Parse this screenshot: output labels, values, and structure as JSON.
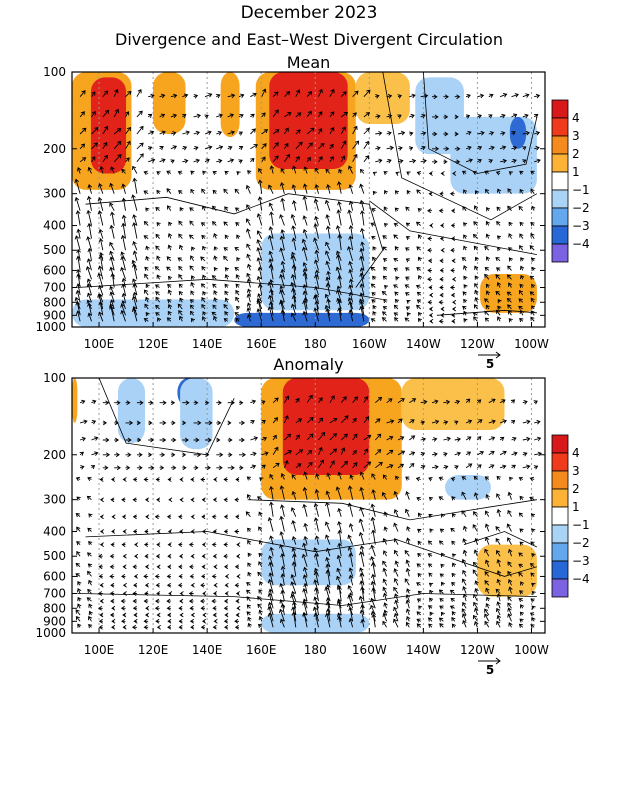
{
  "figure": {
    "title": "December 2023",
    "subtitle": "Divergence and East–West Divergent Circulation"
  },
  "chart_data": [
    {
      "type": "heatmap",
      "title": "Mean",
      "x_ticks": [
        "100E",
        "120E",
        "140E",
        "160E",
        "180",
        "160W",
        "140W",
        "120W",
        "100W"
      ],
      "x_tick_lon": [
        100,
        120,
        140,
        160,
        180,
        200,
        220,
        240,
        260
      ],
      "x_range_lon": [
        90,
        265
      ],
      "y_ticks": [
        "100",
        "200",
        "300",
        "400",
        "500",
        "600",
        "700",
        "800",
        "900",
        "1000"
      ],
      "y_tick_values": [
        100,
        200,
        300,
        400,
        500,
        600,
        700,
        800,
        900,
        1000
      ],
      "y_range": [
        100,
        1000
      ],
      "y_scale": "log-pressure",
      "vector_reference": "5",
      "grid": "dotted",
      "regions": [
        {
          "lon": [
            90,
            112
          ],
          "p": [
            100,
            290
          ],
          "value": 2
        },
        {
          "lon": [
            97,
            110
          ],
          "p": [
            105,
            250
          ],
          "value": 4
        },
        {
          "lon": [
            120,
            132
          ],
          "p": [
            100,
            175
          ],
          "value": 2
        },
        {
          "lon": [
            145,
            152
          ],
          "p": [
            100,
            180
          ],
          "value": 2
        },
        {
          "lon": [
            158,
            195
          ],
          "p": [
            100,
            290
          ],
          "value": 2
        },
        {
          "lon": [
            163,
            192
          ],
          "p": [
            100,
            240
          ],
          "value": 4
        },
        {
          "lon": [
            195,
            215
          ],
          "p": [
            100,
            160
          ],
          "value": 1.5
        },
        {
          "lon": [
            217,
            235
          ],
          "p": [
            105,
            210
          ],
          "value": -1.5
        },
        {
          "lon": [
            230,
            262
          ],
          "p": [
            150,
            300
          ],
          "value": -1.5
        },
        {
          "lon": [
            252,
            258
          ],
          "p": [
            150,
            200
          ],
          "value": -2.5
        },
        {
          "lon": [
            241,
            262
          ],
          "p": [
            620,
            880
          ],
          "value": 2
        },
        {
          "lon": [
            160,
            200
          ],
          "p": [
            430,
            860
          ],
          "value": -1.5
        },
        {
          "lon": [
            90,
            150
          ],
          "p": [
            780,
            1000
          ],
          "value": -1.5
        },
        {
          "lon": [
            150,
            200
          ],
          "p": [
            880,
            1000
          ],
          "value": -2.5
        }
      ]
    },
    {
      "type": "heatmap",
      "title": "Anomaly",
      "x_ticks": [
        "100E",
        "120E",
        "140E",
        "160E",
        "180",
        "160W",
        "140W",
        "120W",
        "100W"
      ],
      "x_tick_lon": [
        100,
        120,
        140,
        160,
        180,
        200,
        220,
        240,
        260
      ],
      "x_range_lon": [
        90,
        265
      ],
      "y_ticks": [
        "100",
        "200",
        "300",
        "400",
        "500",
        "600",
        "700",
        "800",
        "900",
        "1000"
      ],
      "y_tick_values": [
        100,
        200,
        300,
        400,
        500,
        600,
        700,
        800,
        900,
        1000
      ],
      "y_range": [
        100,
        1000
      ],
      "y_scale": "log-pressure",
      "vector_reference": "5",
      "grid": "dotted",
      "regions": [
        {
          "lon": [
            90,
            92
          ],
          "p": [
            100,
            150
          ],
          "value": 2
        },
        {
          "lon": [
            107,
            117
          ],
          "p": [
            100,
            180
          ],
          "value": -1.5
        },
        {
          "lon": [
            129,
            137
          ],
          "p": [
            100,
            130
          ],
          "value": -2.5
        },
        {
          "lon": [
            130,
            142
          ],
          "p": [
            100,
            190
          ],
          "value": -1.5
        },
        {
          "lon": [
            160,
            212
          ],
          "p": [
            100,
            300
          ],
          "value": 2
        },
        {
          "lon": [
            168,
            200
          ],
          "p": [
            100,
            240
          ],
          "value": 4
        },
        {
          "lon": [
            212,
            250
          ],
          "p": [
            100,
            160
          ],
          "value": 1.5
        },
        {
          "lon": [
            228,
            245
          ],
          "p": [
            240,
            300
          ],
          "value": -1.5
        },
        {
          "lon": [
            240,
            262
          ],
          "p": [
            450,
            720
          ],
          "value": 1.5
        },
        {
          "lon": [
            160,
            195
          ],
          "p": [
            430,
            650
          ],
          "value": -1.5
        },
        {
          "lon": [
            160,
            200
          ],
          "p": [
            840,
            1000
          ],
          "value": -1.5
        }
      ]
    }
  ],
  "colorbar": {
    "labels": [
      "4",
      "3",
      "2",
      "1",
      "−1",
      "−2",
      "−3",
      "−4"
    ],
    "colors": [
      "#d7191c",
      "#ef3b1b",
      "#f58b1f",
      "#fbb237",
      "#ffffff",
      "#aad4f5",
      "#63a8ec",
      "#2767d6",
      "#7a62e0"
    ]
  },
  "colors": {
    "red": "#e2231a",
    "orange_dark": "#f3751e",
    "orange": "#f7a51f",
    "orange_light": "#fbc04a",
    "blue_light": "#a9d2f6",
    "blue": "#5ea6ee",
    "blue_dark": "#2d6ad4"
  }
}
